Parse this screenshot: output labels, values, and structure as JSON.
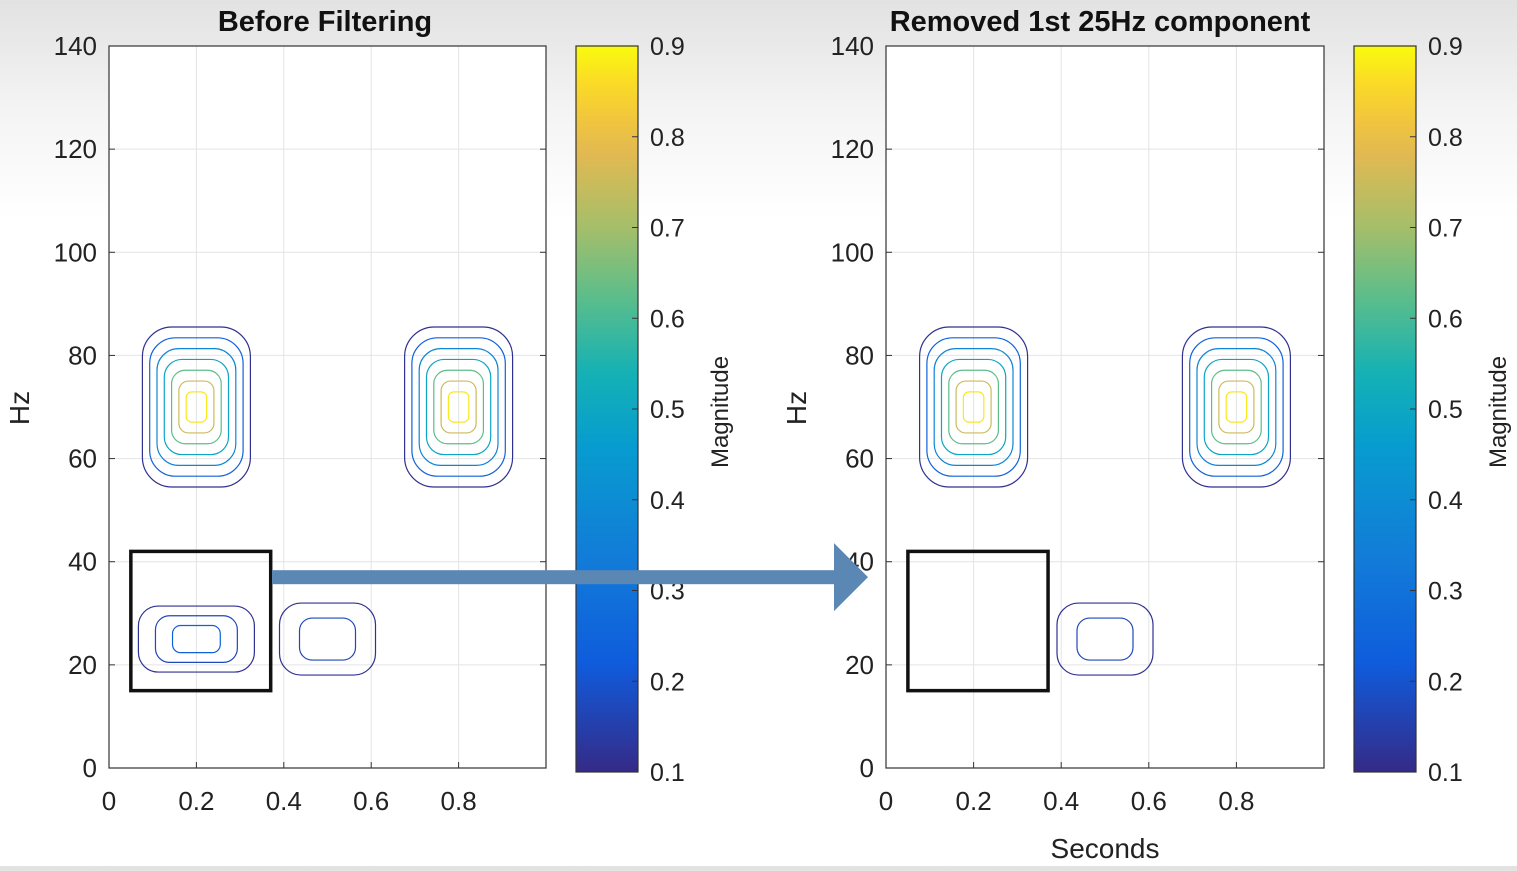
{
  "chart_data": [
    {
      "type": "contour",
      "title": "Before Filtering",
      "xlabel": "",
      "ylabel": "Hz",
      "xlim": [
        0,
        1
      ],
      "ylim": [
        0,
        140
      ],
      "xticks": [
        "0",
        "0.2",
        "0.4",
        "0.6",
        "0.8"
      ],
      "yticks": [
        "0",
        "20",
        "40",
        "60",
        "80",
        "100",
        "120",
        "140"
      ],
      "grid": true,
      "colorbar": {
        "label": "Magnitude",
        "range": [
          0.1,
          0.9
        ],
        "ticks": [
          "0.1",
          "0.2",
          "0.3",
          "0.4",
          "0.5",
          "0.6",
          "0.7",
          "0.8",
          "0.9"
        ]
      },
      "components": [
        {
          "t": 0.2,
          "f": 70,
          "peak": 0.9,
          "levels": 7
        },
        {
          "t": 0.8,
          "f": 70,
          "peak": 0.9,
          "levels": 7
        },
        {
          "t": 0.2,
          "f": 25,
          "peak": 0.3,
          "levels": 3
        },
        {
          "t": 0.5,
          "f": 25,
          "peak": 0.2,
          "levels": 2
        }
      ],
      "highlight_box": {
        "t_range": [
          0.05,
          0.37
        ],
        "f_range": [
          15,
          42
        ]
      }
    },
    {
      "type": "contour",
      "title": "Removed 1st 25Hz component",
      "xlabel": "Seconds",
      "ylabel": "Hz",
      "xlim": [
        0,
        1
      ],
      "ylim": [
        0,
        140
      ],
      "xticks": [
        "0",
        "0.2",
        "0.4",
        "0.6",
        "0.8"
      ],
      "yticks": [
        "0",
        "20",
        "40",
        "60",
        "80",
        "100",
        "120",
        "140"
      ],
      "grid": true,
      "colorbar": {
        "label": "Magnitude",
        "range": [
          0.1,
          0.9
        ],
        "ticks": [
          "0.1",
          "0.2",
          "0.3",
          "0.4",
          "0.5",
          "0.6",
          "0.7",
          "0.8",
          "0.9"
        ]
      },
      "components": [
        {
          "t": 0.2,
          "f": 70,
          "peak": 0.9,
          "levels": 7
        },
        {
          "t": 0.8,
          "f": 70,
          "peak": 0.9,
          "levels": 7
        },
        {
          "t": 0.5,
          "f": 25,
          "peak": 0.2,
          "levels": 2
        }
      ],
      "highlight_box": {
        "t_range": [
          0.05,
          0.37
        ],
        "f_range": [
          15,
          42
        ]
      }
    }
  ],
  "arrow": {
    "from_panel": 0,
    "to_panel": 1,
    "f": 37,
    "color": "#5b87b5"
  }
}
